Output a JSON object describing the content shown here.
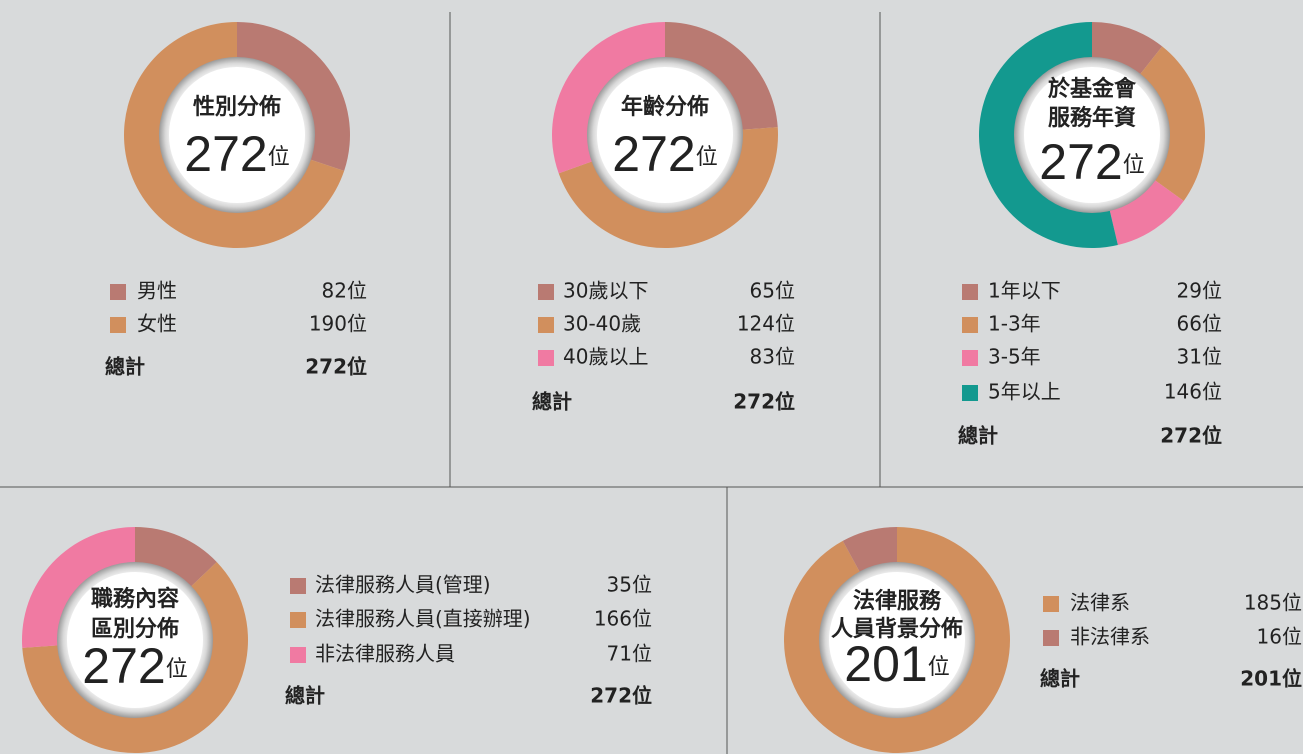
{
  "chart_data": [
    {
      "type": "pie",
      "title": [
        "性別分佈"
      ],
      "total": 272,
      "unit": "位",
      "categories": [
        "男性",
        "女性"
      ],
      "values": [
        82,
        190
      ],
      "value_labels": [
        "82位",
        "190位"
      ],
      "colors": [
        "#b97a72",
        "#d18f5d"
      ],
      "total_name": "總計",
      "total_label": "272位"
    },
    {
      "type": "pie",
      "title": [
        "年齡分佈"
      ],
      "total": 272,
      "unit": "位",
      "categories": [
        "30歲以下",
        "30-40歲",
        "40歲以上"
      ],
      "values": [
        65,
        124,
        83
      ],
      "value_labels": [
        "65位",
        "124位",
        "83位"
      ],
      "colors": [
        "#b97a72",
        "#d18f5d",
        "#f07aa2"
      ],
      "total_name": "總計",
      "total_label": "272位"
    },
    {
      "type": "pie",
      "title": [
        "於基金會",
        "服務年資"
      ],
      "total": 272,
      "unit": "位",
      "categories": [
        "1年以下",
        "1-3年",
        "3-5年",
        "5年以上"
      ],
      "values": [
        29,
        66,
        31,
        146
      ],
      "value_labels": [
        "29位",
        "66位",
        "31位",
        "146位"
      ],
      "colors": [
        "#b97a72",
        "#d18f5d",
        "#f07aa2",
        "#13998f"
      ],
      "total_name": "總計",
      "total_label": "272位"
    },
    {
      "type": "pie",
      "title": [
        "職務內容",
        "區別分佈"
      ],
      "total": 272,
      "unit": "位",
      "categories": [
        "法律服務人員(管理)",
        "法律服務人員(直接辦理)",
        "非法律服務人員"
      ],
      "values": [
        35,
        166,
        71
      ],
      "value_labels": [
        "35位",
        "166位",
        "71位"
      ],
      "colors": [
        "#b97a72",
        "#d18f5d",
        "#f07aa2"
      ],
      "total_name": "總計",
      "total_label": "272位"
    },
    {
      "type": "pie",
      "title": [
        "法律服務",
        "人員背景分佈"
      ],
      "total": 201,
      "unit": "位",
      "categories": [
        "法律系",
        "非法律系"
      ],
      "values": [
        185,
        16
      ],
      "value_labels": [
        "185位",
        "16位"
      ],
      "colors": [
        "#d18f5d",
        "#b97a72"
      ],
      "total_name": "總計",
      "total_label": "201位",
      "start_offset_values": true
    }
  ]
}
